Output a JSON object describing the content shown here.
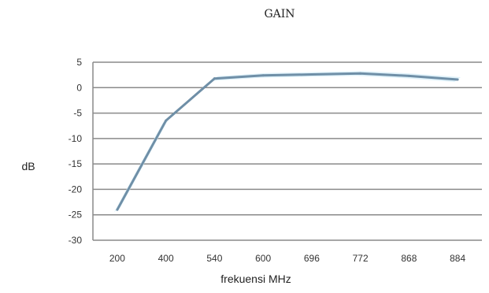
{
  "chart_data": {
    "type": "line",
    "title": "GAIN",
    "xlabel": "frekuensi MHz",
    "ylabel": "dB",
    "categories": [
      "200",
      "400",
      "540",
      "600",
      "696",
      "772",
      "868",
      "884"
    ],
    "series": [
      {
        "values": [
          -24,
          -6.5,
          1.8,
          2.4,
          2.6,
          2.8,
          2.3,
          1.6
        ]
      }
    ],
    "ylim": [
      -30,
      5
    ],
    "yticks": [
      "5",
      "0",
      "-5",
      "-10",
      "-15",
      "-20",
      "-25",
      "-30"
    ],
    "grid": true,
    "line_color": "#6f8fa7",
    "band_color": "#d9eef8"
  }
}
